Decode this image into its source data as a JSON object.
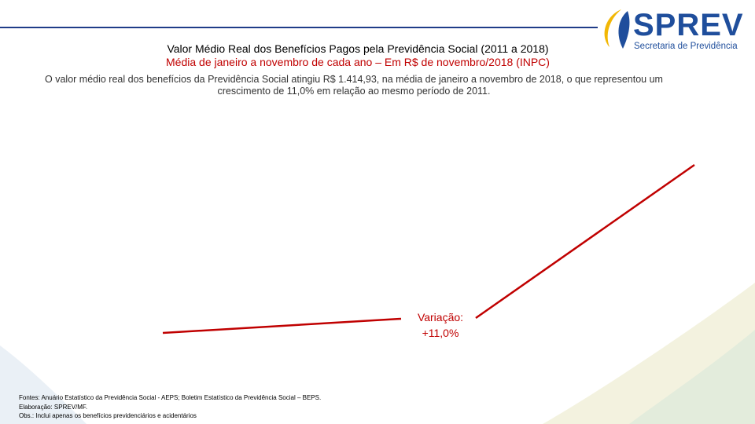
{
  "logo": {
    "name": "SPREV",
    "subtitle": "Secretaria de Previdência"
  },
  "header": {
    "title": "Valor Médio Real dos Benefícios Pagos pela Previdência Social (2011 a 2018)",
    "subtitle": "Média de janeiro a novembro de cada ano – Em R$ de novembro/2018 (INPC)"
  },
  "description": "O valor médio real dos benefícios da Previdência Social atingiu R$ 1.414,93, na média de janeiro a novembro de 2018, o que representou um crescimento de 11,0% em relação ao mesmo período de 2011.",
  "annotation": {
    "label": "Variação:",
    "value": "+11,0%"
  },
  "footnotes": [
    "Fontes: Anuário Estatístico da Previdência Social - AEPS; Boletim Estatístico da Previdência Social – BEPS.",
    "Elaboração: SPREV/MF.",
    "Obs.: Inclui apenas os benefícios previdenciários e acidentários"
  ]
}
